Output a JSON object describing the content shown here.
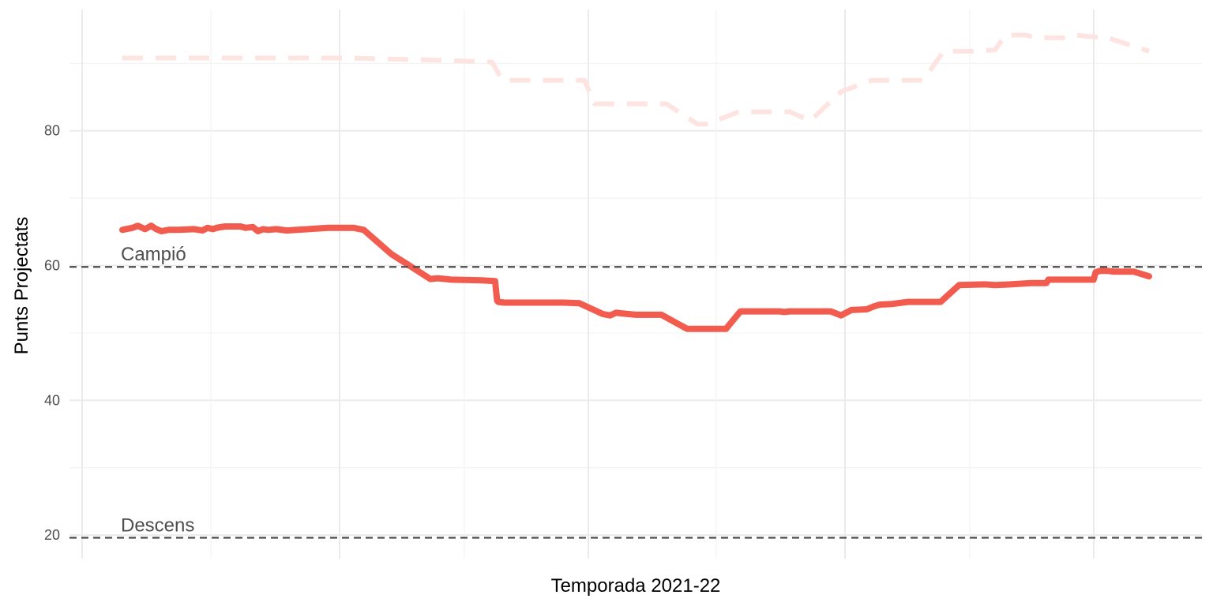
{
  "chart_data": {
    "type": "line",
    "xlabel": "Temporada 2021-22",
    "ylabel": "Punts Projectats",
    "ylim": [
      16.5,
      98
    ],
    "y_ticks": [
      20,
      40,
      60,
      80
    ],
    "grid": true,
    "colors": {
      "main": "#f25c4e",
      "comparison": "#fde4e1",
      "reference": "#4d4d4d"
    },
    "reference_lines": [
      {
        "label": "Campió",
        "value": 59.8
      },
      {
        "label": "Descens",
        "value": 19.6
      }
    ],
    "series": [
      {
        "style": "dashed",
        "x": [
          0.0,
          0.22,
          0.3,
          0.36,
          0.37,
          0.45,
          0.46,
          0.53,
          0.56,
          0.57,
          0.6,
          0.65,
          0.67,
          0.7,
          0.73,
          0.78,
          0.8,
          0.81,
          0.83,
          0.85,
          0.86,
          0.88,
          0.89,
          0.92,
          0.93,
          0.94,
          0.96,
          1.0
        ],
        "values": [
          90.8,
          90.8,
          90.5,
          90.2,
          87.5,
          87.5,
          84.0,
          84.0,
          81.0,
          81.0,
          82.8,
          82.8,
          81.5,
          85.8,
          87.5,
          87.5,
          91.8,
          91.8,
          91.8,
          92.0,
          94.2,
          94.2,
          93.8,
          93.8,
          94.2,
          94.0,
          93.8,
          91.8
        ]
      },
      {
        "style": "solid",
        "x": [
          0.0,
          0.01,
          0.015,
          0.022,
          0.028,
          0.033,
          0.038,
          0.045,
          0.055,
          0.07,
          0.078,
          0.083,
          0.088,
          0.092,
          0.1,
          0.115,
          0.12,
          0.127,
          0.132,
          0.137,
          0.142,
          0.15,
          0.16,
          0.17,
          0.2,
          0.225,
          0.235,
          0.262,
          0.3,
          0.307,
          0.315,
          0.32,
          0.35,
          0.363,
          0.365,
          0.366,
          0.372,
          0.385,
          0.4,
          0.415,
          0.43,
          0.445,
          0.468,
          0.475,
          0.478,
          0.481,
          0.486,
          0.5,
          0.525,
          0.55,
          0.575,
          0.588,
          0.59,
          0.602,
          0.62,
          0.63,
          0.64,
          0.645,
          0.65,
          0.665,
          0.69,
          0.7,
          0.71,
          0.725,
          0.733,
          0.738,
          0.75,
          0.765,
          0.78,
          0.79,
          0.793,
          0.797,
          0.815,
          0.84,
          0.85,
          0.865,
          0.885,
          0.9,
          0.902,
          0.905,
          0.915,
          0.94,
          0.946,
          0.948,
          0.952,
          0.96,
          0.965,
          0.985,
          1.0
        ],
        "values": [
          65.3,
          65.6,
          65.9,
          65.4,
          65.9,
          65.4,
          65.1,
          65.3,
          65.3,
          65.4,
          65.2,
          65.6,
          65.4,
          65.6,
          65.8,
          65.8,
          65.6,
          65.7,
          65.1,
          65.4,
          65.3,
          65.4,
          65.2,
          65.3,
          65.6,
          65.6,
          65.3,
          61.7,
          58.0,
          58.1,
          58.0,
          57.9,
          57.8,
          57.7,
          54.8,
          54.6,
          54.5,
          54.5,
          54.5,
          54.5,
          54.5,
          54.4,
          52.8,
          52.6,
          52.8,
          53.0,
          52.9,
          52.7,
          52.7,
          50.6,
          50.6,
          50.6,
          51.0,
          53.2,
          53.2,
          53.2,
          53.2,
          53.1,
          53.2,
          53.2,
          53.2,
          52.6,
          53.4,
          53.5,
          54.0,
          54.2,
          54.3,
          54.6,
          54.6,
          54.6,
          54.6,
          54.6,
          57.1,
          57.2,
          57.1,
          57.2,
          57.4,
          57.4,
          57.9,
          57.9,
          57.9,
          57.9,
          57.9,
          59.0,
          59.2,
          59.2,
          59.1,
          59.1,
          58.4
        ]
      }
    ]
  }
}
